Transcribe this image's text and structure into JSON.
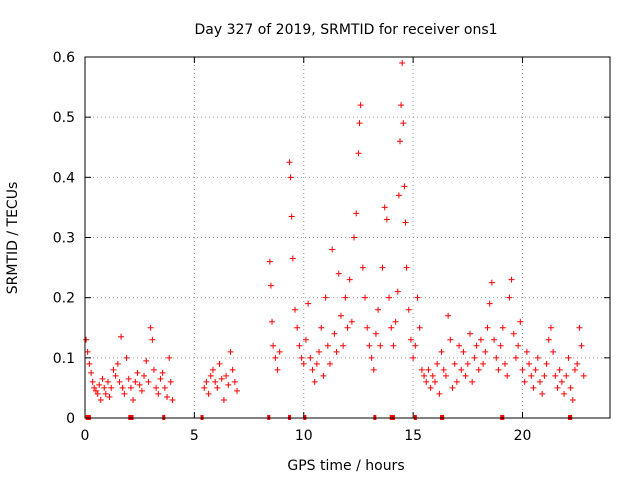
{
  "chart_data": {
    "type": "scatter",
    "title": "Day 327 of 2019, SRMTID for receiver ons1",
    "xlabel": "GPS time / hours",
    "ylabel": "SRMTID / TECUs",
    "xlim": [
      0,
      24
    ],
    "ylim": [
      0,
      0.6
    ],
    "x_ticks": [
      0,
      5,
      10,
      15,
      20
    ],
    "x_tick_labels": [
      "0",
      "5",
      "10",
      "15",
      "20"
    ],
    "y_ticks": [
      0,
      0.1,
      0.2,
      0.3,
      0.4,
      0.5,
      0.6
    ],
    "y_tick_labels": [
      "0",
      "0.1",
      "0.2",
      "0.3",
      "0.4",
      "0.5",
      "0.6"
    ],
    "grid": true,
    "marker": "+",
    "series_color": "#ff0000",
    "series": [
      {
        "name": "SRMTID",
        "points": [
          [
            0.05,
            0.13
          ],
          [
            0.12,
            0.11
          ],
          [
            0.2,
            0.09
          ],
          [
            0.28,
            0.075
          ],
          [
            0.35,
            0.06
          ],
          [
            0.42,
            0.05
          ],
          [
            0.5,
            0.045
          ],
          [
            0.58,
            0.04
          ],
          [
            0.65,
            0.055
          ],
          [
            0.72,
            0.03
          ],
          [
            0.8,
            0.065
          ],
          [
            0.88,
            0.05
          ],
          [
            0.95,
            0.04
          ],
          [
            1.05,
            0.06
          ],
          [
            1.12,
            0.035
          ],
          [
            1.2,
            0.05
          ],
          [
            1.3,
            0.08
          ],
          [
            1.4,
            0.07
          ],
          [
            1.5,
            0.09
          ],
          [
            1.58,
            0.06
          ],
          [
            1.65,
            0.135
          ],
          [
            1.72,
            0.05
          ],
          [
            1.8,
            0.04
          ],
          [
            1.9,
            0.1
          ],
          [
            2.0,
            0.065
          ],
          [
            2.1,
            0.05
          ],
          [
            2.2,
            0.03
          ],
          [
            2.3,
            0.06
          ],
          [
            2.4,
            0.075
          ],
          [
            2.5,
            0.055
          ],
          [
            2.6,
            0.045
          ],
          [
            2.7,
            0.07
          ],
          [
            2.8,
            0.095
          ],
          [
            2.9,
            0.06
          ],
          [
            3.0,
            0.15
          ],
          [
            3.08,
            0.13
          ],
          [
            3.15,
            0.08
          ],
          [
            3.25,
            0.05
          ],
          [
            3.35,
            0.04
          ],
          [
            3.45,
            0.065
          ],
          [
            3.55,
            0.075
          ],
          [
            3.65,
            0.05
          ],
          [
            3.75,
            0.035
          ],
          [
            3.85,
            0.1
          ],
          [
            3.92,
            0.06
          ],
          [
            4.0,
            0.03
          ],
          [
            5.45,
            0.05
          ],
          [
            5.55,
            0.06
          ],
          [
            5.65,
            0.04
          ],
          [
            5.75,
            0.07
          ],
          [
            5.85,
            0.08
          ],
          [
            5.95,
            0.06
          ],
          [
            6.05,
            0.05
          ],
          [
            6.15,
            0.09
          ],
          [
            6.25,
            0.065
          ],
          [
            6.35,
            0.03
          ],
          [
            6.45,
            0.07
          ],
          [
            6.55,
            0.055
          ],
          [
            6.65,
            0.11
          ],
          [
            6.75,
            0.08
          ],
          [
            6.85,
            0.06
          ],
          [
            6.95,
            0.045
          ],
          [
            8.45,
            0.26
          ],
          [
            8.5,
            0.22
          ],
          [
            8.55,
            0.16
          ],
          [
            8.6,
            0.12
          ],
          [
            8.7,
            0.1
          ],
          [
            8.8,
            0.08
          ],
          [
            8.9,
            0.11
          ],
          [
            9.35,
            0.425
          ],
          [
            9.4,
            0.4
          ],
          [
            9.45,
            0.335
          ],
          [
            9.5,
            0.265
          ],
          [
            9.6,
            0.18
          ],
          [
            9.7,
            0.15
          ],
          [
            9.8,
            0.12
          ],
          [
            9.9,
            0.1
          ],
          [
            10.0,
            0.09
          ],
          [
            10.1,
            0.13
          ],
          [
            10.2,
            0.19
          ],
          [
            10.3,
            0.1
          ],
          [
            10.4,
            0.08
          ],
          [
            10.5,
            0.06
          ],
          [
            10.6,
            0.09
          ],
          [
            10.7,
            0.11
          ],
          [
            10.8,
            0.15
          ],
          [
            10.9,
            0.07
          ],
          [
            11.0,
            0.2
          ],
          [
            11.1,
            0.12
          ],
          [
            11.2,
            0.09
          ],
          [
            11.3,
            0.28
          ],
          [
            11.4,
            0.14
          ],
          [
            11.5,
            0.11
          ],
          [
            11.6,
            0.24
          ],
          [
            11.7,
            0.17
          ],
          [
            11.8,
            0.12
          ],
          [
            11.9,
            0.2
          ],
          [
            12.0,
            0.15
          ],
          [
            12.1,
            0.23
          ],
          [
            12.2,
            0.16
          ],
          [
            12.3,
            0.3
          ],
          [
            12.4,
            0.34
          ],
          [
            12.5,
            0.44
          ],
          [
            12.55,
            0.49
          ],
          [
            12.6,
            0.52
          ],
          [
            12.7,
            0.25
          ],
          [
            12.8,
            0.2
          ],
          [
            12.9,
            0.15
          ],
          [
            13.0,
            0.12
          ],
          [
            13.1,
            0.1
          ],
          [
            13.2,
            0.08
          ],
          [
            13.3,
            0.14
          ],
          [
            13.4,
            0.18
          ],
          [
            13.5,
            0.12
          ],
          [
            13.6,
            0.25
          ],
          [
            13.7,
            0.35
          ],
          [
            13.8,
            0.33
          ],
          [
            13.9,
            0.2
          ],
          [
            14.0,
            0.15
          ],
          [
            14.1,
            0.12
          ],
          [
            14.2,
            0.16
          ],
          [
            14.3,
            0.21
          ],
          [
            14.35,
            0.37
          ],
          [
            14.4,
            0.46
          ],
          [
            14.45,
            0.52
          ],
          [
            14.5,
            0.59
          ],
          [
            14.55,
            0.49
          ],
          [
            14.6,
            0.385
          ],
          [
            14.65,
            0.325
          ],
          [
            14.7,
            0.25
          ],
          [
            14.8,
            0.18
          ],
          [
            14.9,
            0.13
          ],
          [
            15.0,
            0.1
          ],
          [
            15.1,
            0.12
          ],
          [
            15.2,
            0.2
          ],
          [
            15.3,
            0.15
          ],
          [
            15.4,
            0.08
          ],
          [
            15.5,
            0.07
          ],
          [
            15.6,
            0.06
          ],
          [
            15.7,
            0.08
          ],
          [
            15.8,
            0.05
          ],
          [
            15.9,
            0.07
          ],
          [
            16.0,
            0.06
          ],
          [
            16.1,
            0.09
          ],
          [
            16.2,
            0.04
          ],
          [
            16.3,
            0.11
          ],
          [
            16.4,
            0.08
          ],
          [
            16.5,
            0.07
          ],
          [
            16.6,
            0.17
          ],
          [
            16.7,
            0.13
          ],
          [
            16.8,
            0.05
          ],
          [
            16.9,
            0.09
          ],
          [
            17.0,
            0.06
          ],
          [
            17.1,
            0.12
          ],
          [
            17.2,
            0.08
          ],
          [
            17.3,
            0.11
          ],
          [
            17.4,
            0.07
          ],
          [
            17.5,
            0.09
          ],
          [
            17.6,
            0.14
          ],
          [
            17.7,
            0.06
          ],
          [
            17.8,
            0.1
          ],
          [
            17.9,
            0.12
          ],
          [
            18.0,
            0.08
          ],
          [
            18.1,
            0.13
          ],
          [
            18.2,
            0.09
          ],
          [
            18.3,
            0.11
          ],
          [
            18.4,
            0.15
          ],
          [
            18.5,
            0.19
          ],
          [
            18.6,
            0.225
          ],
          [
            18.7,
            0.13
          ],
          [
            18.8,
            0.1
          ],
          [
            18.9,
            0.08
          ],
          [
            19.0,
            0.12
          ],
          [
            19.1,
            0.15
          ],
          [
            19.2,
            0.09
          ],
          [
            19.3,
            0.07
          ],
          [
            19.4,
            0.2
          ],
          [
            19.5,
            0.23
          ],
          [
            19.6,
            0.14
          ],
          [
            19.7,
            0.1
          ],
          [
            19.8,
            0.12
          ],
          [
            19.9,
            0.16
          ],
          [
            20.0,
            0.08
          ],
          [
            20.1,
            0.06
          ],
          [
            20.2,
            0.11
          ],
          [
            20.3,
            0.09
          ],
          [
            20.4,
            0.07
          ],
          [
            20.5,
            0.05
          ],
          [
            20.6,
            0.08
          ],
          [
            20.7,
            0.1
          ],
          [
            20.8,
            0.06
          ],
          [
            20.9,
            0.04
          ],
          [
            21.0,
            0.07
          ],
          [
            21.1,
            0.09
          ],
          [
            21.2,
            0.13
          ],
          [
            21.3,
            0.15
          ],
          [
            21.4,
            0.11
          ],
          [
            21.5,
            0.07
          ],
          [
            21.6,
            0.05
          ],
          [
            21.7,
            0.08
          ],
          [
            21.8,
            0.06
          ],
          [
            21.9,
            0.04
          ],
          [
            22.0,
            0.07
          ],
          [
            22.1,
            0.1
          ],
          [
            22.2,
            0.05
          ],
          [
            22.3,
            0.03
          ],
          [
            22.4,
            0.08
          ],
          [
            22.5,
            0.09
          ],
          [
            22.6,
            0.15
          ],
          [
            22.7,
            0.12
          ],
          [
            22.8,
            0.07
          ]
        ]
      }
    ],
    "baseline_markers_x": [
      0.1,
      0.2,
      2.05,
      2.15,
      3.6,
      5.35,
      8.4,
      9.35,
      10.05,
      13.25,
      14.0,
      14.1,
      15.1,
      16.3,
      16.35,
      19.05,
      19.1,
      22.15,
      22.2
    ]
  }
}
